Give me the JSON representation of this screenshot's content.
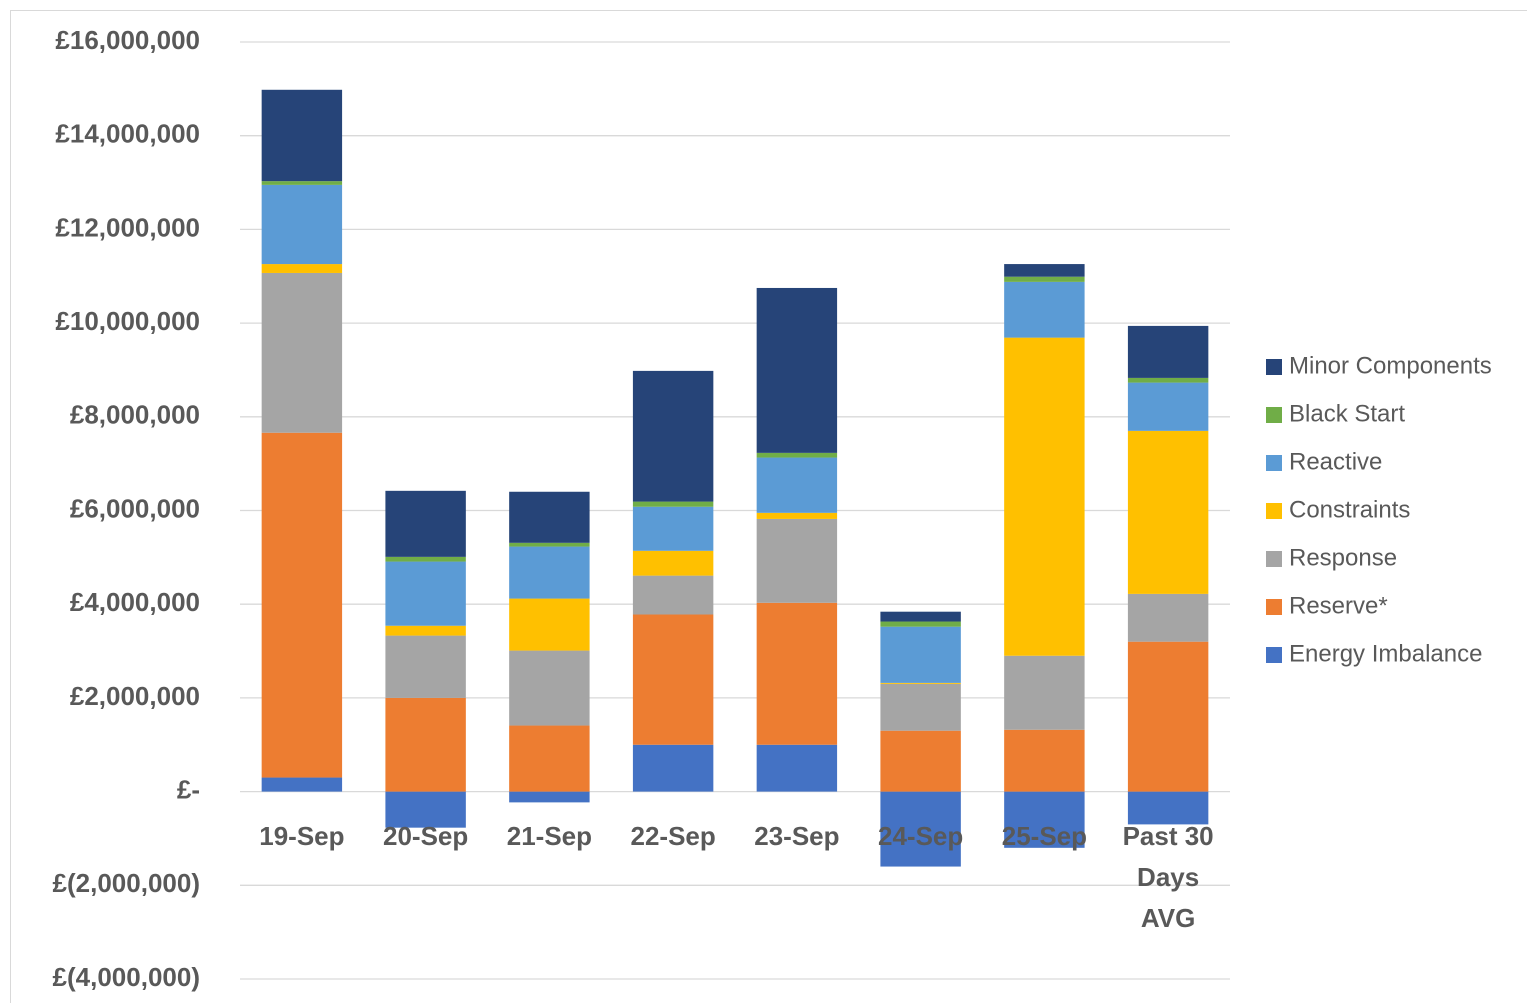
{
  "chart_data": {
    "type": "stacked_bar",
    "categories": [
      "19-Sep",
      "20-Sep",
      "21-Sep",
      "22-Sep",
      "23-Sep",
      "24-Sep",
      "25-Sep",
      "Past 30 Days AVG"
    ],
    "series": [
      {
        "name": "Energy Imbalance",
        "color": "#4472c4",
        "values": [
          300000,
          -770000,
          -230000,
          1000000,
          1000000,
          -1600000,
          -1200000,
          -700000
        ]
      },
      {
        "name": "Reserve*",
        "color": "#ed7d31",
        "values": [
          7360000,
          2000000,
          1410000,
          2780000,
          3030000,
          1300000,
          1320000,
          3200000
        ]
      },
      {
        "name": "Response",
        "color": "#a5a5a5",
        "values": [
          3410000,
          1330000,
          1600000,
          830000,
          1790000,
          1000000,
          1580000,
          1020000
        ]
      },
      {
        "name": "Constraints",
        "color": "#ffc000",
        "values": [
          190000,
          210000,
          1110000,
          530000,
          130000,
          20000,
          6790000,
          3480000
        ]
      },
      {
        "name": "Reactive",
        "color": "#5b9bd5",
        "values": [
          1690000,
          1370000,
          1110000,
          940000,
          1180000,
          1200000,
          1190000,
          1030000
        ]
      },
      {
        "name": "Black Start",
        "color": "#70ad47",
        "values": [
          80000,
          100000,
          80000,
          110000,
          100000,
          110000,
          110000,
          100000
        ]
      },
      {
        "name": "Minor Components",
        "color": "#264478",
        "values": [
          1950000,
          1410000,
          1090000,
          2790000,
          3520000,
          210000,
          270000,
          1110000
        ]
      }
    ],
    "ylim": [
      -4000000,
      16000000
    ],
    "yticks": [
      {
        "value": -4000000,
        "label": "£(4,000,000)"
      },
      {
        "value": -2000000,
        "label": "£(2,000,000)"
      },
      {
        "value": 0,
        "label": "£-"
      },
      {
        "value": 2000000,
        "label": "£2,000,000"
      },
      {
        "value": 4000000,
        "label": "£4,000,000"
      },
      {
        "value": 6000000,
        "label": "£6,000,000"
      },
      {
        "value": 8000000,
        "label": "£8,000,000"
      },
      {
        "value": 10000000,
        "label": "£10,000,000"
      },
      {
        "value": 12000000,
        "label": "£12,000,000"
      },
      {
        "value": 14000000,
        "label": "£14,000,000"
      },
      {
        "value": 16000000,
        "label": "£16,000,000"
      }
    ],
    "grid": true,
    "legend": "right"
  }
}
